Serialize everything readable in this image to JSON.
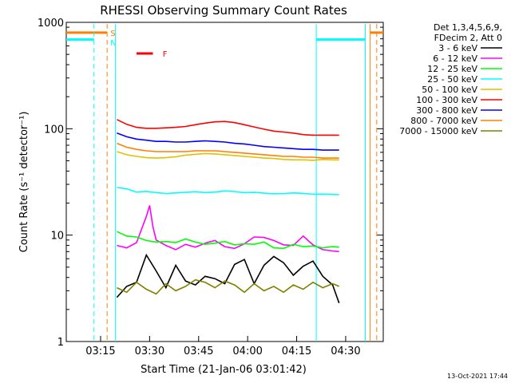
{
  "chart_data": {
    "type": "line",
    "title": "RHESSI Observing Summary Count Rates",
    "xlabel": "Start Time (21-Jan-06 03:01:42)",
    "ylabel": "Count Rate (s⁻¹ detector⁻¹)",
    "x_unit": "minutes of day",
    "xlim": [
      184.5,
      281.5
    ],
    "ylim": [
      1,
      1000
    ],
    "yscale": "log",
    "x_ticks": [
      {
        "value": 195,
        "label": "03:15"
      },
      {
        "value": 210,
        "label": "03:30"
      },
      {
        "value": 225,
        "label": "03:45"
      },
      {
        "value": 240,
        "label": "04:00"
      },
      {
        "value": 255,
        "label": "04:15"
      },
      {
        "value": 270,
        "label": "04:30"
      }
    ],
    "y_ticks": [
      {
        "value": 1,
        "label": "1"
      },
      {
        "value": 10,
        "label": "10"
      },
      {
        "value": 100,
        "label": "100"
      },
      {
        "value": 1000,
        "label": "1000"
      }
    ],
    "legend_header": [
      "Det 1,3,4,5,6,9,",
      "FDecim 2, Att 0"
    ],
    "legend_position": "right",
    "series": [
      {
        "name": "3 - 6 keV",
        "color": "#000000",
        "x": [
          200,
          203,
          206,
          209,
          212,
          215,
          218,
          221,
          224,
          227,
          230,
          233,
          236,
          239,
          242,
          245,
          248,
          251,
          254,
          257,
          260,
          263,
          266,
          268
        ],
        "y": [
          2.6,
          3.3,
          3.6,
          6.5,
          4.6,
          3.2,
          5.2,
          3.7,
          3.4,
          4.1,
          3.9,
          3.5,
          5.3,
          5.9,
          3.5,
          5.2,
          6.3,
          5.5,
          4.2,
          5.1,
          5.7,
          4.1,
          3.4,
          2.3
        ]
      },
      {
        "name": "6 - 12 keV",
        "color": "#ff00ff",
        "x": [
          200,
          203,
          206,
          209,
          210,
          211,
          212,
          215,
          218,
          221,
          224,
          227,
          230,
          233,
          236,
          239,
          242,
          245,
          248,
          251,
          254,
          257,
          260,
          263,
          266,
          268
        ],
        "y": [
          8.0,
          7.6,
          8.5,
          15.0,
          19.0,
          12.0,
          9.0,
          8.0,
          7.3,
          8.2,
          7.7,
          8.4,
          8.9,
          7.8,
          7.5,
          8.3,
          9.6,
          9.5,
          8.9,
          8.1,
          8.0,
          9.8,
          8.1,
          7.3,
          7.1,
          7.0
        ]
      },
      {
        "name": "12 - 25 keV",
        "color": "#00ff00",
        "x": [
          200,
          203,
          206,
          209,
          212,
          215,
          218,
          221,
          224,
          227,
          230,
          233,
          236,
          239,
          242,
          245,
          248,
          251,
          254,
          257,
          260,
          263,
          266,
          268
        ],
        "y": [
          10.8,
          9.8,
          9.6,
          8.9,
          8.6,
          8.7,
          8.5,
          9.2,
          8.6,
          8.2,
          8.4,
          8.7,
          8.1,
          8.3,
          8.2,
          8.6,
          7.6,
          7.5,
          8.2,
          7.8,
          7.9,
          7.6,
          7.8,
          7.7
        ]
      },
      {
        "name": "25 - 50 keV",
        "color": "#00ffff",
        "x": [
          200,
          203,
          206,
          209,
          212,
          215,
          218,
          221,
          224,
          227,
          230,
          233,
          236,
          239,
          242,
          245,
          248,
          251,
          254,
          257,
          260,
          263,
          266,
          268
        ],
        "y": [
          28.0,
          27.2,
          25.4,
          25.8,
          25.1,
          24.6,
          24.9,
          25.2,
          25.6,
          25.1,
          25.4,
          26.0,
          25.7,
          25.0,
          25.2,
          24.8,
          24.5,
          24.6,
          24.9,
          24.7,
          24.2,
          24.3,
          24.1,
          24.0
        ]
      },
      {
        "name": "50 - 100 keV",
        "color": "#e0c000",
        "x": [
          200,
          203,
          206,
          209,
          212,
          215,
          218,
          221,
          224,
          227,
          230,
          233,
          236,
          239,
          242,
          245,
          248,
          251,
          254,
          257,
          260,
          263,
          266,
          268
        ],
        "y": [
          61.0,
          57.0,
          55.0,
          53.5,
          53.0,
          53.5,
          54.5,
          56.5,
          57.5,
          58.5,
          58.0,
          57.0,
          56.0,
          55.0,
          54.0,
          53.0,
          52.5,
          51.5,
          51.0,
          51.0,
          50.5,
          51.5,
          51.0,
          51.0
        ]
      },
      {
        "name": "100 - 300 keV",
        "color": "#ff0000",
        "x": [
          200,
          203,
          206,
          209,
          212,
          215,
          218,
          221,
          224,
          227,
          230,
          233,
          236,
          239,
          242,
          245,
          248,
          251,
          254,
          257,
          260,
          263,
          266,
          268
        ],
        "y": [
          122,
          110,
          103,
          101,
          101,
          102,
          103,
          105,
          109,
          113,
          116,
          117,
          114,
          109,
          104,
          99,
          95,
          93,
          91,
          88,
          87,
          87,
          87,
          87
        ]
      },
      {
        "name": "300 - 800 keV",
        "color": "#0000ff",
        "x": [
          200,
          203,
          206,
          209,
          212,
          215,
          218,
          221,
          224,
          227,
          230,
          233,
          236,
          239,
          242,
          245,
          248,
          251,
          254,
          257,
          260,
          263,
          266,
          268
        ],
        "y": [
          91,
          84,
          80,
          78,
          76,
          76,
          75,
          75,
          76,
          77,
          76,
          75,
          73,
          72,
          70,
          68,
          67,
          66,
          65,
          64,
          64,
          63,
          63,
          63
        ]
      },
      {
        "name": "800 - 7000 keV",
        "color": "#ff8000",
        "x": [
          200,
          203,
          206,
          209,
          212,
          215,
          218,
          221,
          224,
          227,
          230,
          233,
          236,
          239,
          242,
          245,
          248,
          251,
          254,
          257,
          260,
          263,
          266,
          268
        ],
        "y": [
          73,
          67,
          64,
          62,
          61,
          61,
          61,
          61,
          62,
          62,
          62,
          61,
          60,
          59,
          58,
          57,
          56,
          55,
          55,
          54,
          54,
          53,
          53,
          53
        ]
      },
      {
        "name": "7000 - 15000 keV",
        "color": "#808000",
        "x": [
          200,
          203,
          206,
          209,
          212,
          215,
          218,
          221,
          224,
          227,
          230,
          233,
          236,
          239,
          242,
          245,
          248,
          251,
          254,
          257,
          260,
          263,
          266,
          268
        ],
        "y": [
          3.2,
          2.9,
          3.6,
          3.1,
          2.8,
          3.5,
          3.0,
          3.3,
          3.8,
          3.6,
          3.2,
          3.7,
          3.4,
          2.9,
          3.5,
          3.0,
          3.3,
          2.9,
          3.4,
          3.1,
          3.6,
          3.2,
          3.5,
          3.3
        ]
      }
    ],
    "annotations": [
      {
        "label": "S",
        "x": 198,
        "y": 800,
        "color": "#ff8000"
      },
      {
        "label": "N",
        "x": 198,
        "y": 650,
        "color": "#00ffff"
      },
      {
        "label": "F",
        "x": 214,
        "y": 510,
        "color": "#ff0000"
      }
    ],
    "flag_bars": [
      {
        "name": "S",
        "color": "#ff8000",
        "segments": [
          [
            184.5,
            197
          ],
          [
            277.5,
            281.5
          ]
        ],
        "y": 800
      },
      {
        "name": "N",
        "color": "#00ffff",
        "segments": [
          [
            184.5,
            193
          ],
          [
            261,
            276
          ]
        ],
        "y": 690
      },
      {
        "name": "F",
        "color": "#ff0000",
        "segments": [
          [
            206,
            211
          ]
        ],
        "y": 510
      }
    ],
    "boundary_lines": [
      {
        "x": 193,
        "color": "#00ffff",
        "style": "dashed"
      },
      {
        "x": 197,
        "color": "#ff8000",
        "style": "dashed"
      },
      {
        "x": 199.5,
        "color": "#00ffff",
        "style": "solid"
      },
      {
        "x": 261,
        "color": "#00ffff",
        "style": "solid"
      },
      {
        "x": 276,
        "color": "#00ffff",
        "style": "solid"
      },
      {
        "x": 277.5,
        "color": "#ff8000",
        "style": "solid"
      },
      {
        "x": 279.5,
        "color": "#ff8000",
        "style": "dashed"
      }
    ],
    "grid": false,
    "footer_timestamp": "13-Oct-2021 17:44"
  }
}
